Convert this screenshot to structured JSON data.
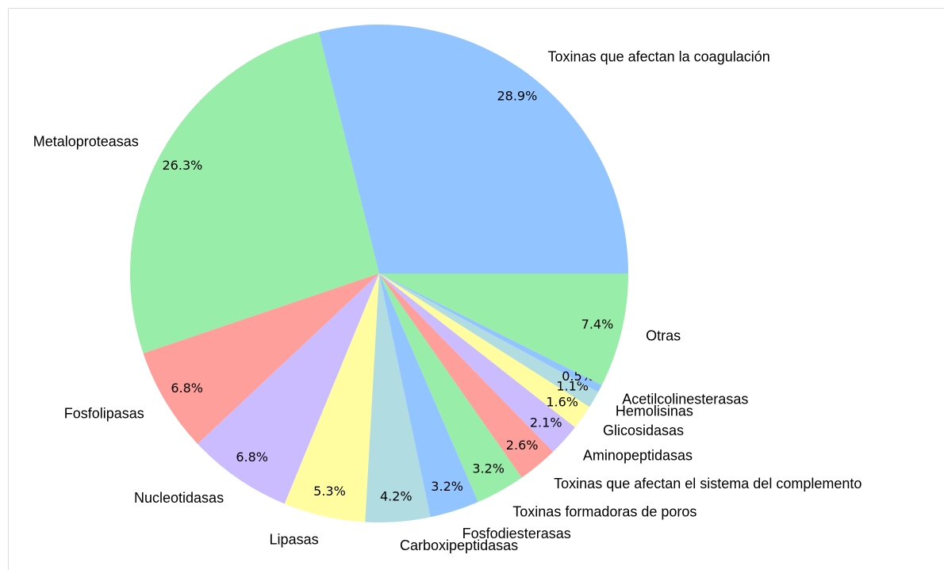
{
  "chart_data": {
    "type": "pie",
    "categories": [
      "Toxinas que afectan la coagulación",
      "Metaloproteasas",
      "Fosfolipasas",
      "Nucleotidasas",
      "Lipasas",
      "Carboxipeptidasas",
      "Fosfodiesterasas",
      "Toxinas formadoras de poros",
      "Toxinas que afectan el sistema del complemento",
      "Aminopeptidasas",
      "Glicosidasas",
      "Hemolisinas",
      "Acetilcolinesterasas",
      "Otras"
    ],
    "values": [
      28.9,
      26.3,
      6.8,
      6.8,
      5.3,
      4.2,
      3.2,
      3.2,
      2.6,
      2.1,
      1.6,
      1.1,
      0.5,
      7.4
    ],
    "value_labels": [
      "28.9%",
      "26.3%",
      "6.8%",
      "6.8%",
      "5.3%",
      "4.2%",
      "3.2%",
      "3.2%",
      "2.6%",
      "2.1%",
      "1.6%",
      "1.1%",
      "0.5%",
      "7.4%"
    ],
    "colors": [
      "#92c5ff",
      "#98eda8",
      "#ff9f9b",
      "#cbbcff",
      "#fffda0",
      "#b0dce2",
      "#92c5ff",
      "#98eda8",
      "#ff9f9b",
      "#cbbcff",
      "#fffda0",
      "#b0dce2",
      "#92c5ff",
      "#98eda8"
    ]
  }
}
